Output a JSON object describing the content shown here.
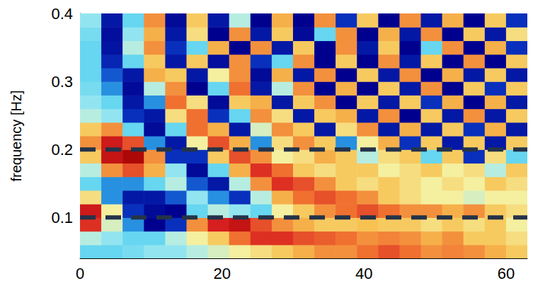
{
  "chart_data": {
    "type": "heatmap",
    "ylabel": "frequency [Hz]",
    "xlim": [
      0,
      63
    ],
    "xticks": [
      0,
      20,
      40,
      60
    ],
    "ylim": [
      0.04,
      0.4
    ],
    "yticks": [
      0.1,
      0.2,
      0.3,
      0.4
    ],
    "grid": false,
    "x": [
      1.5,
      4.5,
      7.5,
      10.5,
      13.5,
      16.5,
      19.5,
      22.5,
      25.5,
      28.5,
      31.5,
      34.5,
      37.5,
      40.5,
      43.5,
      46.5,
      49.5,
      52.5,
      55.5,
      58.5,
      61.5
    ],
    "y": [
      0.05,
      0.07,
      0.09,
      0.11,
      0.13,
      0.15,
      0.17,
      0.19,
      0.21,
      0.23,
      0.25,
      0.27,
      0.29,
      0.31,
      0.33,
      0.35,
      0.37,
      0.39
    ],
    "zlim": [
      0,
      1
    ],
    "z": [
      [
        0.3,
        0.3,
        0.32,
        0.35,
        0.35,
        0.4,
        0.45,
        0.5,
        0.55,
        0.6,
        0.65,
        0.7,
        0.7,
        0.75,
        0.8,
        0.75,
        0.7,
        0.72,
        0.7,
        0.65,
        0.6
      ],
      [
        0.4,
        0.35,
        0.3,
        0.3,
        0.4,
        0.5,
        0.6,
        0.75,
        0.85,
        0.85,
        0.8,
        0.78,
        0.75,
        0.7,
        0.72,
        0.7,
        0.65,
        0.7,
        0.6,
        0.6,
        0.55
      ],
      [
        0.85,
        0.45,
        0.2,
        0.0,
        0.1,
        0.7,
        0.88,
        0.92,
        0.8,
        0.7,
        0.65,
        0.6,
        0.6,
        0.62,
        0.6,
        0.6,
        0.55,
        0.6,
        0.55,
        0.6,
        0.5
      ],
      [
        0.9,
        0.5,
        0.1,
        0.02,
        0.0,
        0.3,
        0.4,
        0.35,
        0.3,
        0.5,
        0.6,
        0.7,
        0.75,
        0.8,
        0.75,
        0.7,
        0.7,
        0.65,
        0.7,
        0.6,
        0.55
      ],
      [
        0.55,
        0.2,
        0.05,
        0.05,
        0.15,
        0.35,
        0.2,
        0.1,
        0.4,
        0.65,
        0.75,
        0.8,
        0.75,
        0.7,
        0.6,
        0.55,
        0.5,
        0.5,
        0.45,
        0.5,
        0.5
      ],
      [
        0.3,
        0.2,
        0.2,
        0.3,
        0.4,
        0.15,
        0.05,
        0.4,
        0.7,
        0.85,
        0.8,
        0.7,
        0.6,
        0.55,
        0.6,
        0.55,
        0.5,
        0.55,
        0.5,
        0.6,
        0.55
      ],
      [
        0.4,
        0.7,
        0.8,
        0.65,
        0.35,
        0.02,
        0.3,
        0.65,
        0.85,
        0.75,
        0.6,
        0.55,
        0.6,
        0.6,
        0.5,
        0.55,
        0.6,
        0.5,
        0.55,
        0.4,
        0.6
      ],
      [
        0.6,
        0.92,
        0.97,
        0.7,
        0.1,
        0.1,
        0.6,
        0.8,
        0.7,
        0.5,
        0.55,
        0.65,
        0.6,
        0.4,
        0.55,
        0.6,
        0.3,
        0.6,
        0.1,
        0.55,
        0.3
      ],
      [
        0.7,
        0.9,
        0.8,
        0.2,
        0.05,
        0.5,
        0.8,
        0.65,
        0.2,
        0.55,
        0.7,
        0.6,
        0.2,
        0.5,
        0.65,
        0.1,
        0.6,
        0.05,
        0.6,
        0.05,
        0.6
      ],
      [
        0.6,
        0.7,
        0.3,
        0.02,
        0.3,
        0.75,
        0.65,
        0.05,
        0.45,
        0.7,
        0.6,
        0.05,
        0.55,
        0.7,
        0.05,
        0.65,
        0.05,
        0.6,
        0.1,
        0.65,
        0.05
      ],
      [
        0.4,
        0.35,
        0.1,
        0.05,
        0.55,
        0.75,
        0.1,
        0.3,
        0.7,
        0.55,
        0.05,
        0.6,
        0.65,
        0.05,
        0.7,
        0.0,
        0.6,
        0.05,
        0.7,
        0.05,
        0.6
      ],
      [
        0.35,
        0.3,
        0.05,
        0.2,
        0.75,
        0.55,
        0.02,
        0.6,
        0.65,
        0.05,
        0.6,
        0.7,
        0.0,
        0.6,
        0.05,
        0.6,
        0.1,
        0.65,
        0.0,
        0.65,
        0.05
      ],
      [
        0.32,
        0.2,
        0.02,
        0.4,
        0.7,
        0.0,
        0.3,
        0.75,
        0.05,
        0.4,
        0.7,
        0.0,
        0.65,
        0.0,
        0.6,
        0.05,
        0.7,
        0.0,
        0.6,
        0.1,
        0.6
      ],
      [
        0.3,
        0.15,
        0.05,
        0.65,
        0.6,
        0.05,
        0.5,
        0.7,
        0.02,
        0.65,
        0.05,
        0.7,
        0.0,
        0.6,
        0.05,
        0.7,
        0.0,
        0.65,
        0.05,
        0.6,
        0.05
      ],
      [
        0.3,
        0.08,
        0.3,
        0.6,
        0.05,
        0.6,
        0.03,
        0.7,
        0.1,
        0.3,
        0.7,
        0.0,
        0.6,
        0.0,
        0.7,
        0.05,
        0.6,
        0.0,
        0.7,
        0.0,
        0.6
      ],
      [
        0.3,
        0.04,
        0.4,
        0.7,
        0.1,
        0.3,
        0.65,
        0.0,
        0.7,
        0.05,
        0.6,
        0.0,
        0.7,
        0.05,
        0.6,
        0.0,
        0.3,
        0.7,
        0.0,
        0.65,
        0.1
      ],
      [
        0.32,
        0.03,
        0.35,
        0.65,
        0.05,
        0.55,
        0.0,
        0.7,
        0.05,
        0.6,
        0.02,
        0.3,
        0.7,
        0.0,
        0.65,
        0.05,
        0.7,
        0.0,
        0.6,
        0.05,
        0.55
      ],
      [
        0.35,
        0.05,
        0.3,
        0.7,
        0.02,
        0.6,
        0.05,
        0.4,
        0.0,
        0.65,
        0.0,
        0.7,
        0.1,
        0.6,
        0.0,
        0.7,
        0.05,
        0.65,
        0.0,
        0.6,
        0.1
      ]
    ],
    "hlines": [
      {
        "y": 0.2,
        "color": "#243349",
        "line_style": "dashed"
      },
      {
        "y": 0.1,
        "color": "#243349",
        "line_style": "dashed"
      }
    ]
  }
}
